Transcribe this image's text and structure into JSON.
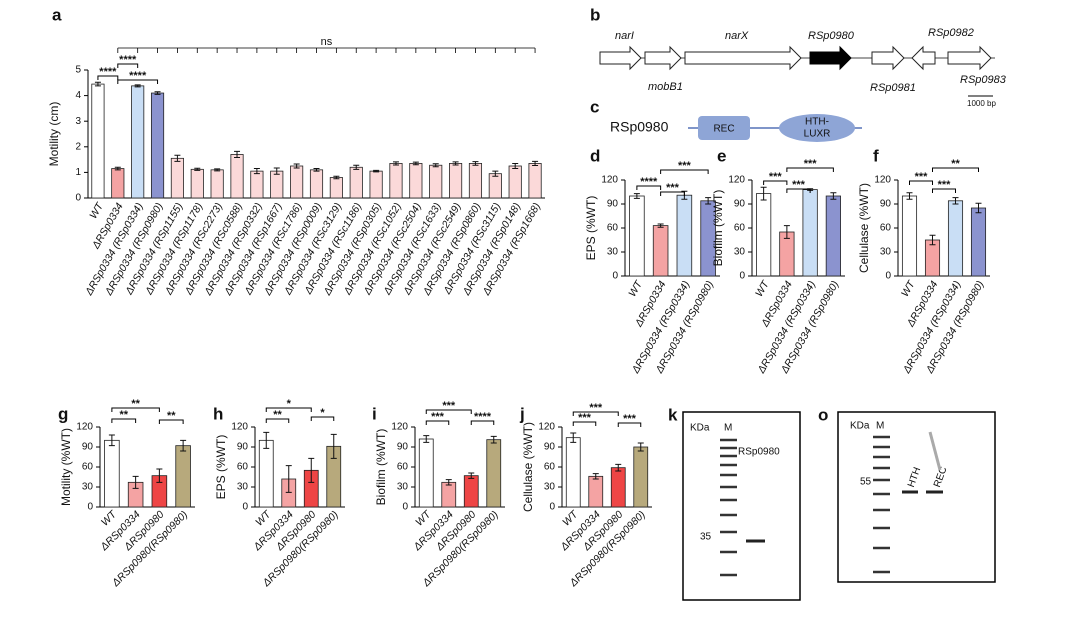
{
  "chart_data": [
    {
      "type": "bar",
      "panel": "a",
      "y_label": "Motility (cm)",
      "categories": [
        "WT",
        "ΔRSp0334",
        "ΔRSp0334 (RSp0334)",
        "ΔRSp0334 (RSp0980)",
        "ΔRSp0334 (RSp1155)",
        "ΔRSp0334 (RSp1178)",
        "ΔRSp0334 (RSc2273)",
        "ΔRSp0334 (RSc0588)",
        "ΔRSp0334 (RSp0332)",
        "ΔRSp0334 (RSp1667)",
        "ΔRSp0334 (RSc1786)",
        "ΔRSp0334 (RSp0009)",
        "ΔRSp0334 (RSc3129)",
        "ΔRSp0334 (RSc1186)",
        "ΔRSp0334 (RSp0305)",
        "ΔRSp0334 (RSc1052)",
        "ΔRSp0334 (RSc2504)",
        "ΔRSp0334 (RSc1633)",
        "ΔRSp0334 (RSc2549)",
        "ΔRSp0334 (RSp0860)",
        "ΔRSp0334 (RSc3115)",
        "ΔRSp0334 (RSp0148)",
        "ΔRSp0334 (RSp1668)"
      ],
      "values": [
        4.45,
        1.15,
        4.38,
        4.1,
        1.55,
        1.12,
        1.1,
        1.7,
        1.05,
        1.05,
        1.25,
        1.1,
        0.8,
        1.2,
        1.05,
        1.35,
        1.35,
        1.28,
        1.35,
        1.35,
        0.95,
        1.25,
        1.35
      ],
      "errors": [
        0.07,
        0.05,
        0.04,
        0.05,
        0.12,
        0.04,
        0.04,
        0.12,
        0.1,
        0.12,
        0.08,
        0.05,
        0.05,
        0.08,
        0.03,
        0.06,
        0.05,
        0.06,
        0.06,
        0.07,
        0.1,
        0.1,
        0.08
      ],
      "colors": [
        "#ffffff",
        "#f4a3a3",
        "#c9def5",
        "#8b93cf",
        "#fbd9d9",
        "#fbd9d9",
        "#fbd9d9",
        "#fbd9d9",
        "#fbd9d9",
        "#fbd9d9",
        "#fbd9d9",
        "#fbd9d9",
        "#fbd9d9",
        "#fbd9d9",
        "#fbd9d9",
        "#fbd9d9",
        "#fbd9d9",
        "#fbd9d9",
        "#fbd9d9",
        "#fbd9d9",
        "#fbd9d9",
        "#fbd9d9",
        "#fbd9d9"
      ],
      "ylim": [
        0,
        5
      ],
      "yticks": [
        0,
        1,
        2,
        3,
        4,
        5
      ],
      "annotations": [
        "****",
        "****",
        "****",
        "ns"
      ]
    },
    {
      "type": "bar",
      "panel": "d",
      "y_label": "EPS (%WT)",
      "categories": [
        "WT",
        "ΔRSp0334",
        "ΔRSp0334 (RSp0334)",
        "ΔRSp0334 (RSp0980)"
      ],
      "values": [
        100,
        63,
        101,
        94
      ],
      "errors": [
        3,
        2,
        5,
        4
      ],
      "colors": [
        "#ffffff",
        "#f4a3a3",
        "#c9def5",
        "#8b93cf"
      ],
      "ylim": [
        0,
        120
      ],
      "yticks": [
        0,
        30,
        60,
        90,
        120
      ],
      "annotations": [
        "****",
        "***",
        "***"
      ]
    },
    {
      "type": "bar",
      "panel": "e",
      "y_label": "Biofilm (%WT)",
      "categories": [
        "WT",
        "ΔRSp0334",
        "ΔRSp0334 (RSp0334)",
        "ΔRSp0334 (RSp0980)"
      ],
      "values": [
        103,
        55,
        108,
        100
      ],
      "errors": [
        8,
        8,
        1,
        4
      ],
      "colors": [
        "#ffffff",
        "#f4a3a3",
        "#c9def5",
        "#8b93cf"
      ],
      "ylim": [
        0,
        120
      ],
      "yticks": [
        0,
        30,
        60,
        90,
        120
      ],
      "annotations": [
        "***",
        "***",
        "***"
      ]
    },
    {
      "type": "bar",
      "panel": "f",
      "y_label": "Cellulase (%WT)",
      "categories": [
        "WT",
        "ΔRSp0334",
        "ΔRSp0334 (RSp0334)",
        "ΔRSp0334 (RSp0980)"
      ],
      "values": [
        100,
        45,
        94,
        85
      ],
      "errors": [
        4,
        6,
        4,
        6
      ],
      "colors": [
        "#ffffff",
        "#f4a3a3",
        "#c9def5",
        "#8b93cf"
      ],
      "ylim": [
        0,
        120
      ],
      "yticks": [
        0,
        30,
        60,
        90,
        120
      ],
      "annotations": [
        "***",
        "***",
        "**"
      ]
    },
    {
      "type": "bar",
      "panel": "g",
      "y_label": "Motility (%WT)",
      "categories": [
        "WT",
        "ΔRSp0334",
        "ΔRSp0980",
        "ΔRSp0980(RSp0980)"
      ],
      "values": [
        100,
        37,
        47,
        92
      ],
      "errors": [
        8,
        9,
        10,
        8
      ],
      "colors": [
        "#ffffff",
        "#f4a3a3",
        "#ee4545",
        "#b7a97c"
      ],
      "ylim": [
        0,
        120
      ],
      "yticks": [
        0,
        30,
        60,
        90,
        120
      ],
      "annotations": [
        "**",
        "**",
        "**"
      ]
    },
    {
      "type": "bar",
      "panel": "h",
      "y_label": "EPS (%WT)",
      "categories": [
        "WT",
        "ΔRSp0334",
        "ΔRSp0980",
        "ΔRSp0980(RSp0980)"
      ],
      "values": [
        100,
        42,
        55,
        91
      ],
      "errors": [
        12,
        20,
        18,
        18
      ],
      "colors": [
        "#ffffff",
        "#f4a3a3",
        "#ee4545",
        "#b7a97c"
      ],
      "ylim": [
        0,
        120
      ],
      "yticks": [
        0,
        30,
        60,
        90,
        120
      ],
      "annotations": [
        "**",
        "*",
        "*"
      ]
    },
    {
      "type": "bar",
      "panel": "i",
      "y_label": "Biofilm (%WT)",
      "categories": [
        "WT",
        "ΔRSp0334",
        "ΔRSp0980",
        "ΔRSp0980(RSp0980)"
      ],
      "values": [
        102,
        37,
        47,
        101
      ],
      "errors": [
        5,
        4,
        4,
        5
      ],
      "colors": [
        "#ffffff",
        "#f4a3a3",
        "#ee4545",
        "#b7a97c"
      ],
      "ylim": [
        0,
        120
      ],
      "yticks": [
        0,
        30,
        60,
        90,
        120
      ],
      "annotations": [
        "***",
        "***",
        "****"
      ]
    },
    {
      "type": "bar",
      "panel": "j",
      "y_label": "Cellulase (%WT)",
      "categories": [
        "WT",
        "ΔRSp0334",
        "ΔRSp0980",
        "ΔRSp0980(RSp0980)"
      ],
      "values": [
        104,
        46,
        59,
        90
      ],
      "errors": [
        7,
        4,
        5,
        6
      ],
      "colors": [
        "#ffffff",
        "#f4a3a3",
        "#ee4545",
        "#b7a97c"
      ],
      "ylim": [
        0,
        120
      ],
      "yticks": [
        0,
        30,
        60,
        90,
        120
      ],
      "annotations": [
        "***",
        "***",
        "***"
      ]
    }
  ],
  "gene_map": {
    "panel": "b",
    "genes": [
      "narI",
      "mobB1",
      "narX",
      "RSp0980",
      "RSp0981",
      "RSp0982",
      "RSp0983"
    ],
    "scale": "1000 bp"
  },
  "domain_diagram": {
    "panel": "c",
    "protein": "RSp0980",
    "rec": "REC",
    "hth_lines": [
      "HTH-",
      "LUXR"
    ]
  },
  "gel_k": {
    "panel": "k",
    "unit": "KDa",
    "marker": "M",
    "band_label": "RSp0980",
    "size": "35"
  },
  "gel_o": {
    "panel": "o",
    "unit": "KDa",
    "marker": "M",
    "size": "55",
    "lanes": [
      "HTH",
      "REC"
    ]
  }
}
